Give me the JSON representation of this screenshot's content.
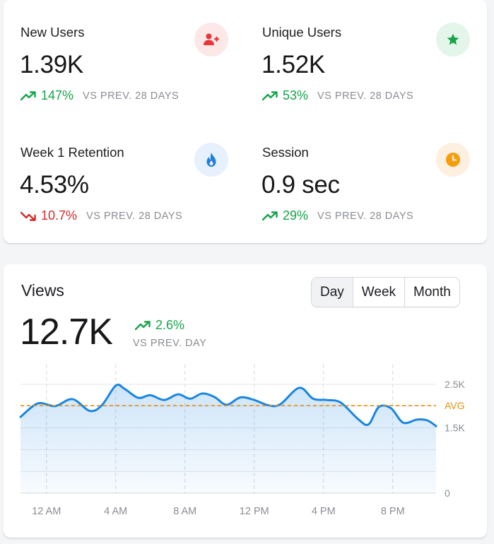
{
  "stats": [
    {
      "label": "New Users",
      "value": "1.39K",
      "change": "147%",
      "direction": "up",
      "comparison": "VS PREV. 28 DAYS",
      "icon": "user-plus-icon",
      "icon_color": "#e5383b",
      "badge_color": "#fde8e8"
    },
    {
      "label": "Unique Users",
      "value": "1.52K",
      "change": "53%",
      "direction": "up",
      "comparison": "VS PREV. 28 DAYS",
      "icon": "star-icon",
      "icon_color": "#16a34a",
      "badge_color": "#e4f6ea"
    },
    {
      "label": "Week 1 Retention",
      "value": "4.53%",
      "change": "10.7%",
      "direction": "down",
      "comparison": "VS PREV. 28 DAYS",
      "icon": "flame-icon",
      "icon_color": "#1f7fe0",
      "badge_color": "#e6f1fd"
    },
    {
      "label": "Session",
      "value": "0.9 sec",
      "change": "29%",
      "direction": "up",
      "comparison": "VS PREV. 28 DAYS",
      "icon": "clock-icon",
      "icon_color": "#f59e0b",
      "badge_color": "#fdf0e0"
    }
  ],
  "views": {
    "title": "Views",
    "value": "12.7K",
    "change": "2.6%",
    "direction": "up",
    "comparison": "VS PREV. DAY",
    "ranges": [
      "Day",
      "Week",
      "Month"
    ],
    "active_range": "Day"
  },
  "colors": {
    "up": "#17a34a",
    "down": "#d42a2a",
    "line": "#1a85e0",
    "avg": "#e8900c"
  },
  "chart_data": {
    "type": "area",
    "x_ticks": [
      "12 AM",
      "4 AM",
      "8 AM",
      "12 PM",
      "4 PM",
      "8 PM"
    ],
    "x_tick_hours": [
      1,
      5,
      9,
      13,
      17,
      21
    ],
    "y_ticks": [
      {
        "value": 0,
        "label": "0"
      },
      {
        "value": 1500,
        "label": "1.5K"
      },
      {
        "value": 2500,
        "label": "2.5K"
      }
    ],
    "ylim": [
      0,
      2500
    ],
    "xlim": [
      -0.5,
      23.5
    ],
    "avg_label": "AVG",
    "avg_value": 2010,
    "grid": true,
    "points": [
      [
        -0.5,
        1750
      ],
      [
        0.5,
        2060
      ],
      [
        1.5,
        2000
      ],
      [
        2.5,
        2160
      ],
      [
        3.5,
        1890
      ],
      [
        4.2,
        2020
      ],
      [
        5.0,
        2470
      ],
      [
        5.5,
        2400
      ],
      [
        6.3,
        2190
      ],
      [
        7.0,
        2250
      ],
      [
        7.8,
        2140
      ],
      [
        8.6,
        2270
      ],
      [
        9.3,
        2170
      ],
      [
        10.0,
        2290
      ],
      [
        10.7,
        2210
      ],
      [
        11.4,
        2030
      ],
      [
        12.2,
        2200
      ],
      [
        13.0,
        2140
      ],
      [
        13.8,
        2020
      ],
      [
        14.5,
        2040
      ],
      [
        15.6,
        2420
      ],
      [
        16.4,
        2170
      ],
      [
        17.2,
        2140
      ],
      [
        18.0,
        2080
      ],
      [
        19.0,
        1700
      ],
      [
        19.6,
        1580
      ],
      [
        20.2,
        1980
      ],
      [
        20.9,
        1950
      ],
      [
        21.6,
        1620
      ],
      [
        22.4,
        1690
      ],
      [
        23.0,
        1670
      ],
      [
        23.5,
        1540
      ]
    ]
  }
}
